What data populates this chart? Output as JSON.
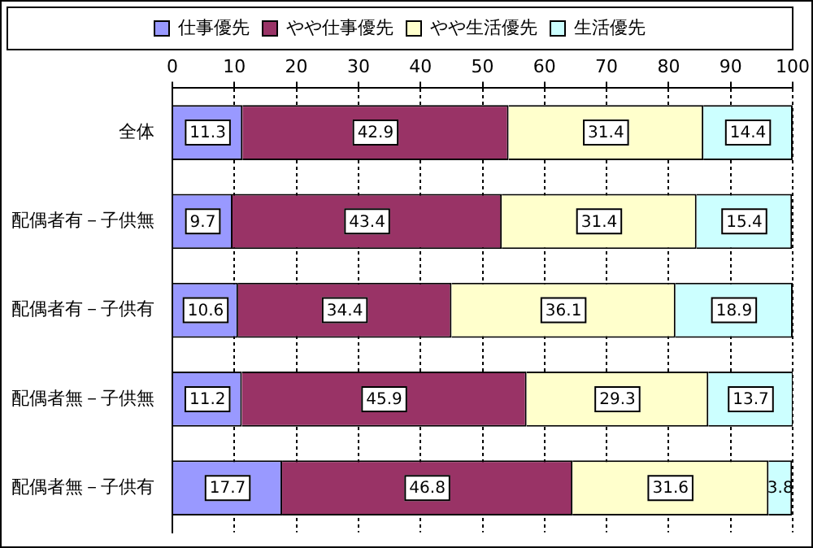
{
  "chart_data": {
    "type": "bar",
    "orientation": "horizontal",
    "stacked": true,
    "categories": [
      "全体",
      "配偶者有－子供無",
      "配偶者有－子供有",
      "配偶者無－子供無",
      "配偶者無－子供有"
    ],
    "series": [
      {
        "name": "仕事優先",
        "color": "#9999ff",
        "values": [
          11.3,
          9.7,
          10.6,
          11.2,
          17.7
        ]
      },
      {
        "name": "やや仕事優先",
        "color": "#993366",
        "values": [
          42.9,
          43.4,
          34.4,
          45.9,
          46.8
        ]
      },
      {
        "name": "やや生活優先",
        "color": "#ffffcc",
        "values": [
          31.4,
          31.4,
          36.1,
          29.3,
          31.6
        ]
      },
      {
        "name": "生活優先",
        "color": "#ccffff",
        "values": [
          14.4,
          15.4,
          18.9,
          13.7,
          3.8
        ]
      }
    ],
    "xlim": [
      0,
      100
    ],
    "xticks": [
      0,
      10,
      20,
      30,
      40,
      50,
      60,
      70,
      80,
      90,
      100
    ],
    "grid": "x",
    "legend": "top",
    "data_labels": true
  }
}
